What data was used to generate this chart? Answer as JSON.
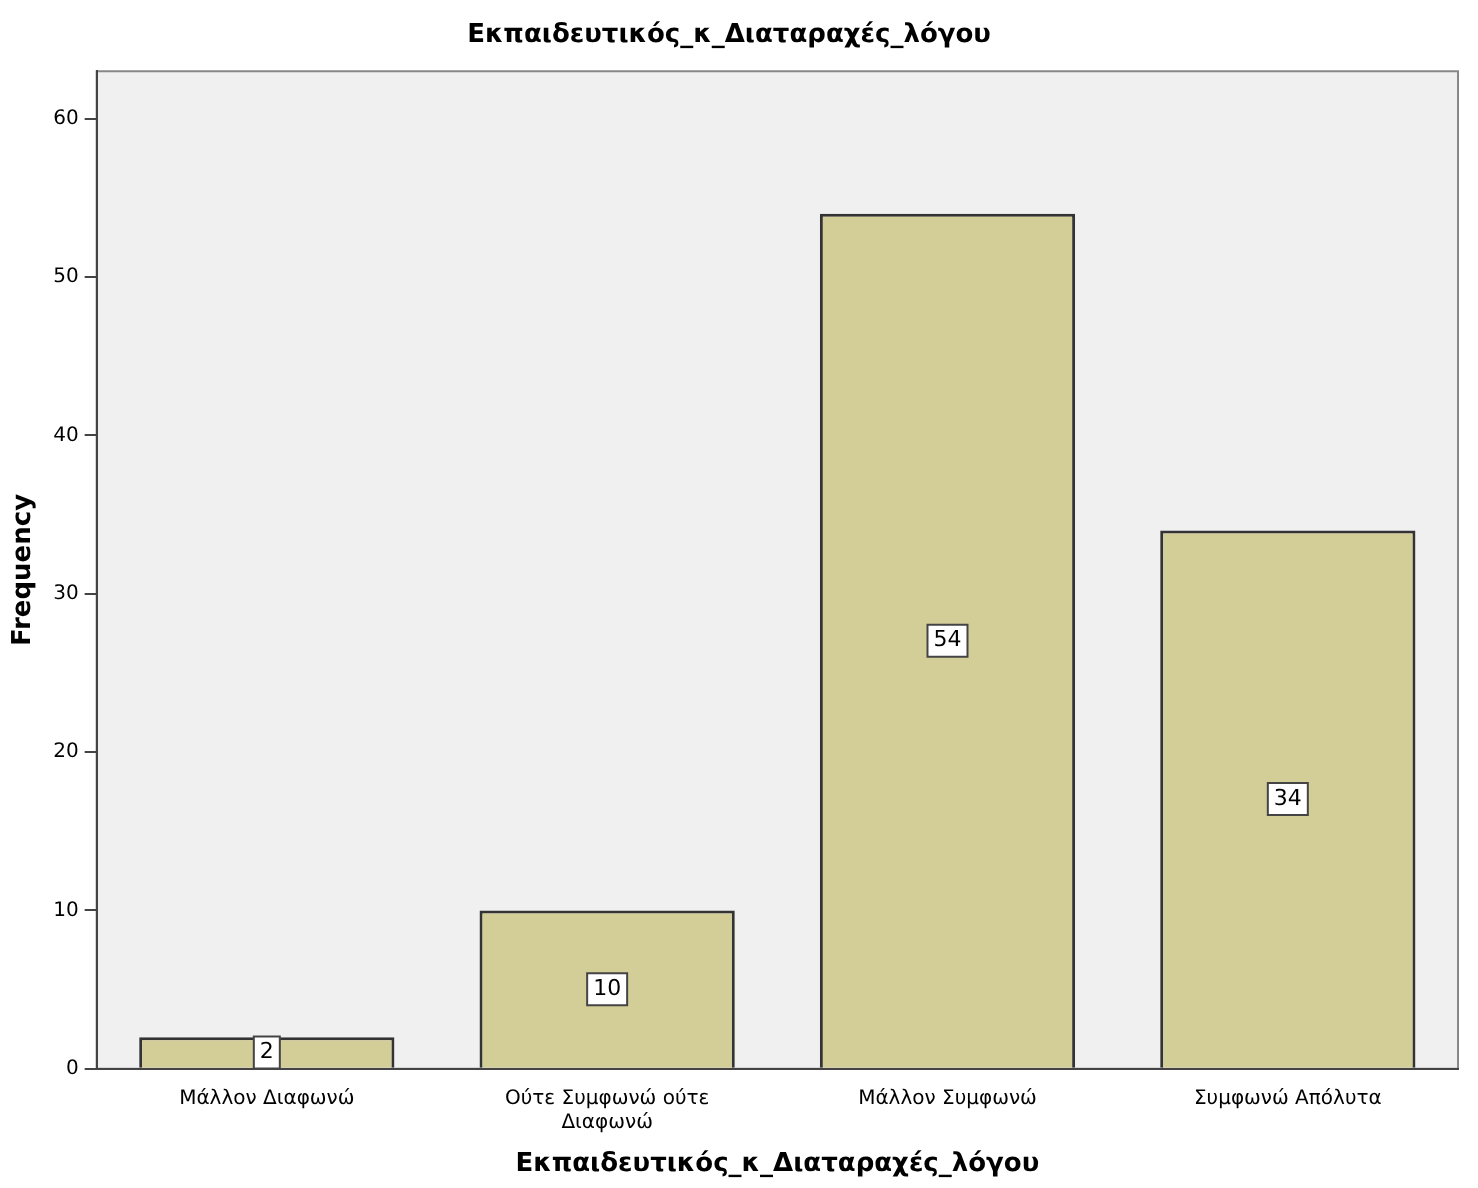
{
  "chart_data": {
    "type": "bar",
    "title": "Εκπαιδευτικός_κ_Διαταραχές_λόγου",
    "xlabel": "Εκπαιδευτικός_κ_Διαταραχές_λόγου",
    "ylabel": "Frequency",
    "categories": [
      "Μάλλον Διαφωνώ",
      "Ούτε Συμφωνώ ούτε Διαφωνώ",
      "Μάλλον Συμφωνώ",
      "Συμφωνώ Απόλυτα"
    ],
    "values": [
      2,
      10,
      54,
      34
    ],
    "color": "#d3ce97",
    "ylim": [
      0,
      63
    ],
    "yticks": [
      0,
      10,
      20,
      30,
      40,
      50,
      60
    ],
    "grid": false,
    "legend": false,
    "data_labels": true
  }
}
